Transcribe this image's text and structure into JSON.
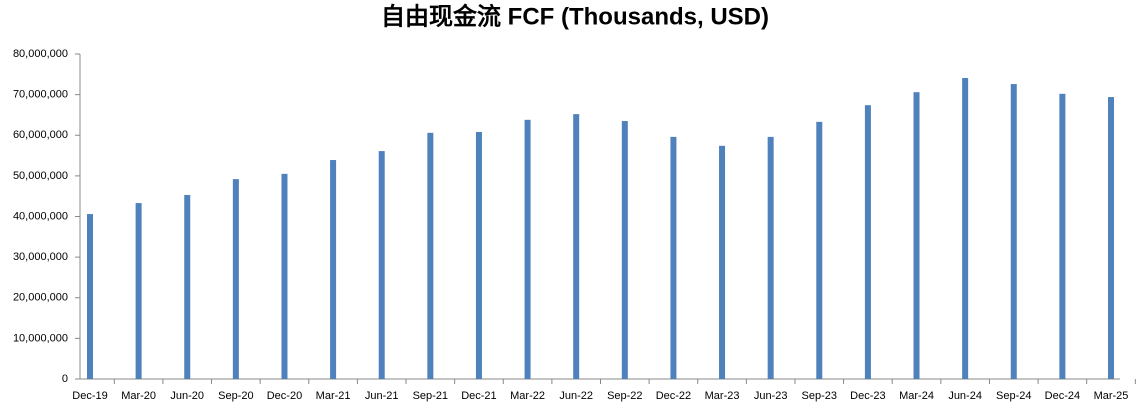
{
  "chart_data": {
    "type": "bar",
    "title": "自由现金流 FCF (Thousands, USD)",
    "categories": [
      "Dec-19",
      "Mar-20",
      "Jun-20",
      "Sep-20",
      "Dec-20",
      "Mar-21",
      "Jun-21",
      "Sep-21",
      "Dec-21",
      "Mar-22",
      "Jun-22",
      "Sep-22",
      "Dec-22",
      "Mar-23",
      "Jun-23",
      "Sep-23",
      "Dec-23",
      "Mar-24",
      "Jun-24",
      "Sep-24",
      "Dec-24",
      "Mar-25"
    ],
    "values": [
      40600000,
      43300000,
      45300000,
      49200000,
      50500000,
      53900000,
      56100000,
      60600000,
      60800000,
      63800000,
      65200000,
      63500000,
      59600000,
      57400000,
      59600000,
      63300000,
      67400000,
      70600000,
      74100000,
      72600000,
      70200000,
      69400000
    ],
    "color": "#4f81bd",
    "ylim": [
      0,
      80000000
    ],
    "yticks": [
      0,
      {
        "value": 10000000,
        "label": "10,000,000"
      },
      {
        "value": 20000000,
        "label": "20,000,000"
      },
      {
        "value": 30000000,
        "label": "30,000,000"
      },
      {
        "value": 40000000,
        "label": "40,000,000"
      },
      {
        "value": 50000000,
        "label": "50,000,000"
      },
      {
        "value": 60000000,
        "label": "60,000,000"
      },
      {
        "value": 70000000,
        "label": "70,000,000"
      },
      {
        "value": 80000000,
        "label": "80,000,000"
      }
    ],
    "grid": false
  }
}
